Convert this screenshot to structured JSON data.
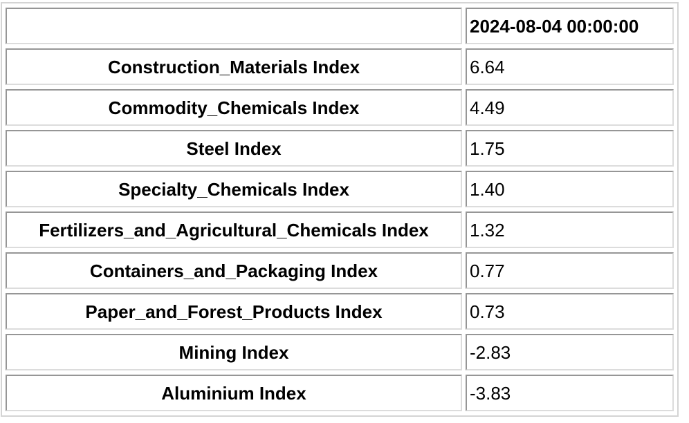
{
  "colors": {
    "text": "#000000",
    "cell_border_dark": "#969696",
    "cell_border_light": "#dcdcdc",
    "table_outer_border": "#d4d4d4",
    "background": "#ffffff"
  },
  "chart_data": {
    "type": "table",
    "title": "",
    "columns": [
      "",
      "2024-08-04 00:00:00"
    ],
    "rows": [
      {
        "label": "Construction_Materials Index",
        "value": "6.64"
      },
      {
        "label": "Commodity_Chemicals Index",
        "value": "4.49"
      },
      {
        "label": "Steel Index",
        "value": "1.75"
      },
      {
        "label": "Specialty_Chemicals Index",
        "value": "1.40"
      },
      {
        "label": "Fertilizers_and_Agricultural_Chemicals Index",
        "value": "1.32"
      },
      {
        "label": "Containers_and_Packaging Index",
        "value": "0.77"
      },
      {
        "label": "Paper_and_Forest_Products Index",
        "value": "0.73"
      },
      {
        "label": "Mining Index",
        "value": "-2.83"
      },
      {
        "label": "Aluminium Index",
        "value": "-3.83"
      }
    ]
  }
}
